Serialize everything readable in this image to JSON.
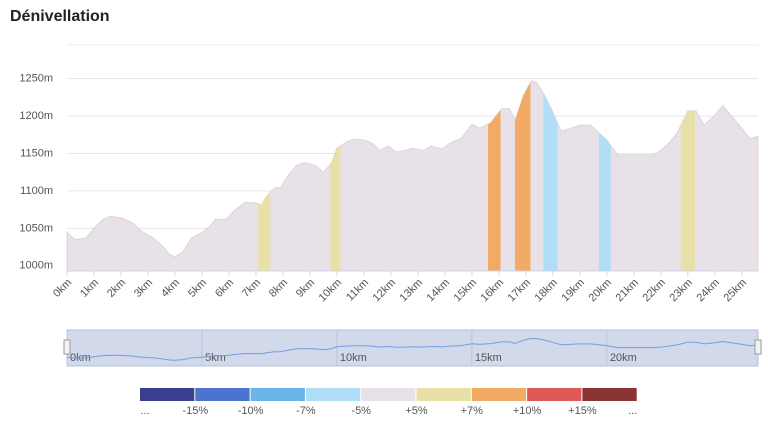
{
  "chart_data": {
    "type": "area",
    "title": "Dénivellation",
    "x": [
      0,
      0.3,
      0.7,
      1.0,
      1.3,
      1.6,
      2.0,
      2.4,
      2.8,
      3.2,
      3.5,
      3.8,
      4.0,
      4.3,
      4.6,
      5.0,
      5.3,
      5.5,
      5.9,
      6.2,
      6.6,
      7.0,
      7.2,
      7.4,
      7.7,
      7.9,
      8.2,
      8.5,
      8.8,
      9.2,
      9.5,
      9.8,
      10.0,
      10.3,
      10.6,
      11.0,
      11.3,
      11.6,
      11.9,
      12.2,
      12.5,
      12.8,
      13.2,
      13.5,
      13.9,
      14.2,
      14.6,
      15.0,
      15.3,
      15.7,
      16.1,
      16.4,
      16.6,
      16.9,
      17.2,
      17.4,
      17.7,
      18.0,
      18.3,
      18.7,
      19.0,
      19.4,
      19.7,
      20.0,
      20.4,
      20.7,
      21.2,
      21.7,
      22.0,
      22.3,
      22.6,
      23.0,
      23.3,
      23.6,
      24.0,
      24.3,
      24.6,
      24.9,
      25.3,
      25.6
    ],
    "values": [
      1045,
      1035,
      1037,
      1050,
      1061,
      1066,
      1064,
      1058,
      1045,
      1037,
      1028,
      1015,
      1012,
      1019,
      1037,
      1044,
      1053,
      1062,
      1062,
      1074,
      1085,
      1084,
      1081,
      1093,
      1104,
      1104,
      1121,
      1134,
      1138,
      1134,
      1125,
      1137,
      1157,
      1164,
      1169,
      1168,
      1164,
      1154,
      1160,
      1152,
      1154,
      1157,
      1154,
      1160,
      1156,
      1164,
      1170,
      1189,
      1184,
      1191,
      1210,
      1210,
      1194,
      1227,
      1247,
      1245,
      1227,
      1205,
      1180,
      1184,
      1188,
      1188,
      1178,
      1168,
      1148,
      1148,
      1148,
      1148,
      1154,
      1164,
      1177,
      1207,
      1207,
      1188,
      1201,
      1214,
      1201,
      1188,
      1170,
      1173
    ],
    "color": "#e8e1e8",
    "highlights": [
      {
        "x0": 7.08,
        "x1": 7.53,
        "color": "#e8e0a6"
      },
      {
        "x0": 9.76,
        "x1": 10.13,
        "color": "#e8e0a6"
      },
      {
        "x0": 15.6,
        "x1": 16.06,
        "color": "#f2aa64"
      },
      {
        "x0": 16.6,
        "x1": 17.17,
        "color": "#f2aa64"
      },
      {
        "x0": 17.65,
        "x1": 18.17,
        "color": "#b0def7"
      },
      {
        "x0": 19.7,
        "x1": 20.14,
        "color": "#b0def7"
      },
      {
        "x0": 22.74,
        "x1": 23.26,
        "color": "#e8e0a6"
      }
    ],
    "xlim": [
      0,
      25.6
    ],
    "ylim": [
      993,
      1295
    ],
    "xticks": [
      {
        "value": 0,
        "label": "0km"
      },
      {
        "value": 1,
        "label": "1km"
      },
      {
        "value": 2,
        "label": "2km"
      },
      {
        "value": 3,
        "label": "3km"
      },
      {
        "value": 4,
        "label": "4km"
      },
      {
        "value": 5,
        "label": "5km"
      },
      {
        "value": 6,
        "label": "6km"
      },
      {
        "value": 7,
        "label": "7km"
      },
      {
        "value": 8,
        "label": "8km"
      },
      {
        "value": 9,
        "label": "9km"
      },
      {
        "value": 10,
        "label": "10km"
      },
      {
        "value": 11,
        "label": "11km"
      },
      {
        "value": 12,
        "label": "12km"
      },
      {
        "value": 13,
        "label": "13km"
      },
      {
        "value": 14,
        "label": "14km"
      },
      {
        "value": 15,
        "label": "15km"
      },
      {
        "value": 16,
        "label": "16km"
      },
      {
        "value": 17,
        "label": "17km"
      },
      {
        "value": 18,
        "label": "18km"
      },
      {
        "value": 19,
        "label": "19km"
      },
      {
        "value": 20,
        "label": "20km"
      },
      {
        "value": 21,
        "label": "21km"
      },
      {
        "value": 22,
        "label": "22km"
      },
      {
        "value": 23,
        "label": "23km"
      },
      {
        "value": 24,
        "label": "24km"
      },
      {
        "value": 25,
        "label": "25km"
      }
    ],
    "yticks": [
      {
        "value": 1000,
        "label": "1000m"
      },
      {
        "value": 1050,
        "label": "1050m"
      },
      {
        "value": 1100,
        "label": "1100m"
      },
      {
        "value": 1150,
        "label": "1150m"
      },
      {
        "value": 1200,
        "label": "1200m"
      },
      {
        "value": 1250,
        "label": "1250m"
      }
    ],
    "grid": true,
    "navigator": {
      "color": "#6fa0e0",
      "xticks": [
        {
          "value": 0,
          "label": "0km"
        },
        {
          "value": 5,
          "label": "5km"
        },
        {
          "value": 10,
          "label": "10km"
        },
        {
          "value": 15,
          "label": "15km"
        },
        {
          "value": 20,
          "label": "20km"
        }
      ]
    },
    "legend": {
      "colors": [
        "#3a3f8f",
        "#4a74cf",
        "#6ab4ea",
        "#b0def7",
        "#e8e1e8",
        "#e8e0a6",
        "#f2aa64",
        "#e05a55",
        "#8a3434"
      ],
      "labels": [
        "...",
        "-15%",
        "-10%",
        "-7%",
        "-5%",
        "+5%",
        "+7%",
        "+10%",
        "+15%",
        "..."
      ]
    }
  }
}
